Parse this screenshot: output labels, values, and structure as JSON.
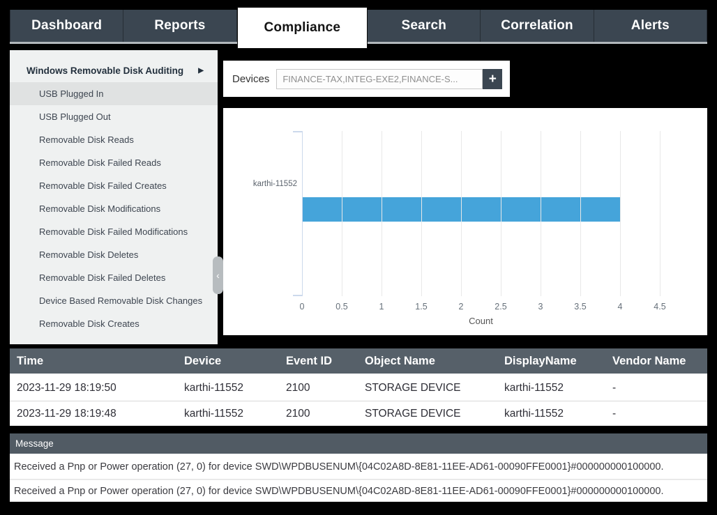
{
  "colors": {
    "nav_bg": "#3b4651",
    "active_tab_bg": "#ffffff",
    "bar_color": "#45a4da",
    "table_header_bg": "#566069",
    "message_header_bg": "#515b64",
    "sidebar_bg": "#eff1f1",
    "sidebar_selected_bg": "#e0e2e2"
  },
  "nav": {
    "tabs": [
      "Dashboard",
      "Reports",
      "Compliance",
      "Search",
      "Correlation",
      "Alerts"
    ],
    "active": "Compliance"
  },
  "sidebar": {
    "header": "Windows Removable Disk Auditing",
    "header_arrow": "▶",
    "collapse_icon": "‹",
    "selected": "USB Plugged In",
    "items": [
      "USB Plugged In",
      "USB Plugged Out",
      "Removable Disk Reads",
      "Removable Disk Failed Reads",
      "Removable Disk Failed Creates",
      "Removable Disk Modifications",
      "Removable Disk Failed Modifications",
      "Removable Disk Deletes",
      "Removable Disk Failed Deletes",
      "Device Based Removable Disk Changes",
      "Removable Disk Creates"
    ]
  },
  "devices": {
    "label": "Devices",
    "value": "FINANCE-TAX,INTEG-EXE2,FINANCE-S...",
    "add_button": "+"
  },
  "chart_data": {
    "type": "bar",
    "orientation": "horizontal",
    "categories": [
      "karthi-11552"
    ],
    "values": [
      4
    ],
    "xlabel": "Count",
    "ylabel": "",
    "xlim": [
      0,
      4.5
    ],
    "xtick_labels": [
      "0",
      "0.5",
      "1",
      "1.5",
      "2",
      "2.5",
      "3",
      "3.5",
      "4",
      "4.5"
    ],
    "bar_color": "#45a4da",
    "grid": true,
    "legend_position": "none"
  },
  "table": {
    "headers": [
      "Time",
      "Device",
      "Event ID",
      "Object Name",
      "DisplayName",
      "Vendor Name"
    ],
    "rows": [
      [
        "2023-11-29 18:19:50",
        "karthi-11552",
        "2100",
        "STORAGE DEVICE",
        "karthi-11552",
        "-"
      ],
      [
        "2023-11-29 18:19:48",
        "karthi-11552",
        "2100",
        "STORAGE DEVICE",
        "karthi-11552",
        "-"
      ]
    ]
  },
  "message": {
    "header": "Message",
    "rows": [
      "Received a Pnp or Power operation (27, 0) for device SWD\\WPDBUSENUM\\{04C02A8D-8E81-11EE-AD61-00090FFE0001}#000000000100000.",
      "Received a Pnp or Power operation (27, 0) for device SWD\\WPDBUSENUM\\{04C02A8D-8E81-11EE-AD61-00090FFE0001}#000000000100000."
    ]
  }
}
